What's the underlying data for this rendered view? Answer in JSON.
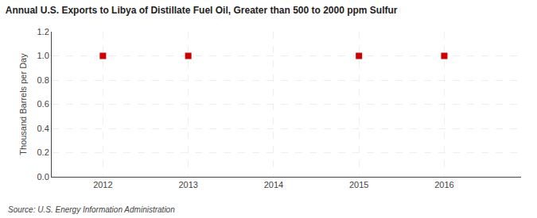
{
  "chart_data": {
    "type": "scatter",
    "title": "Annual U.S. Exports to Libya of Distillate Fuel Oil, Greater than 500 to 2000 ppm Sulfur",
    "ylabel": "Thousand Barrels per Day",
    "annotations": [
      "Source: U.S. Energy Information Administration"
    ],
    "x": [
      2012,
      2013,
      2015,
      2016
    ],
    "values": [
      1.0,
      1.0,
      1.0,
      1.0
    ],
    "color": "#cc0000",
    "marker": "square",
    "xlim": [
      2011.4,
      2016.9
    ],
    "ylim": [
      0.0,
      1.2
    ],
    "xticks": [
      2012,
      2013,
      2014,
      2015,
      2016
    ],
    "yticks": [
      {
        "value": 0.0,
        "label": "0.0"
      },
      0.2,
      0.4,
      0.6,
      0.8,
      {
        "value": 1.0,
        "label": "1.0"
      },
      1.2
    ],
    "grid": true
  }
}
